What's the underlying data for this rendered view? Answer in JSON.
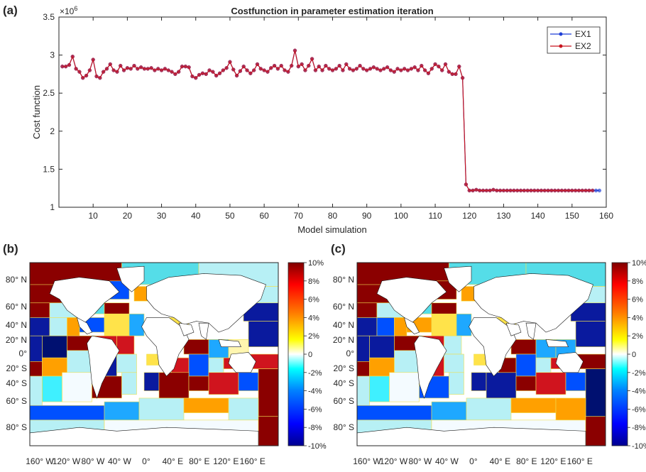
{
  "colors": {
    "ex1": "#1f3fd6",
    "ex2": "#c8141e",
    "axis": "#262626",
    "land": "#ffffff",
    "region_border": "#f0e050"
  },
  "panel_a": {
    "label": "(a)",
    "chart_data": {
      "type": "line",
      "title": "Costfunction in parameter estimation iteration",
      "xlabel": "Model simulation",
      "ylabel": "Cost function",
      "exponent_label": "×10",
      "exponent_power": "6",
      "xlim": [
        0,
        160
      ],
      "ylim": [
        1,
        3.5
      ],
      "xticks": [
        10,
        20,
        30,
        40,
        50,
        60,
        70,
        80,
        90,
        100,
        110,
        120,
        130,
        140,
        150,
        160
      ],
      "yticks": [
        1,
        1.5,
        2,
        2.5,
        3,
        3.5
      ],
      "ytick_labels": [
        "1",
        "1.5",
        "2",
        "2.5",
        "3",
        "3.5"
      ],
      "legend_position": "top-right",
      "series": [
        {
          "name": "EX1",
          "color": "#1f3fd6",
          "values": [
            2.85,
            2.85,
            2.87,
            2.98,
            2.82,
            2.78,
            2.7,
            2.73,
            2.8,
            2.94,
            2.72,
            2.7,
            2.78,
            2.82,
            2.88,
            2.8,
            2.78,
            2.86,
            2.8,
            2.83,
            2.82,
            2.86,
            2.82,
            2.84,
            2.82,
            2.82,
            2.83,
            2.8,
            2.82,
            2.8,
            2.82,
            2.8,
            2.78,
            2.75,
            2.78,
            2.85,
            2.85,
            2.84,
            2.72,
            2.7,
            2.74,
            2.76,
            2.75,
            2.8,
            2.78,
            2.73,
            2.76,
            2.8,
            2.83,
            2.91,
            2.81,
            2.73,
            2.79,
            2.85,
            2.8,
            2.76,
            2.8,
            2.88,
            2.82,
            2.8,
            2.78,
            2.83,
            2.86,
            2.82,
            2.86,
            2.8,
            2.78,
            2.86,
            3.06,
            2.85,
            2.88,
            2.8,
            2.86,
            2.95,
            2.8,
            2.85,
            2.8,
            2.86,
            2.82,
            2.8,
            2.82,
            2.86,
            2.8,
            2.88,
            2.82,
            2.8,
            2.82,
            2.86,
            2.82,
            2.8,
            2.82,
            2.84,
            2.82,
            2.8,
            2.82,
            2.84,
            2.8,
            2.78,
            2.82,
            2.8,
            2.82,
            2.8,
            2.82,
            2.84,
            2.8,
            2.86,
            2.8,
            2.76,
            2.82,
            2.88,
            2.85,
            2.8,
            2.88,
            2.78,
            2.75,
            2.75,
            2.85,
            2.7,
            1.3,
            1.22,
            1.22,
            1.23,
            1.22,
            1.22,
            1.22,
            1.22,
            1.23,
            1.22,
            1.22,
            1.22,
            1.22,
            1.22,
            1.22,
            1.22,
            1.22,
            1.22,
            1.22,
            1.22,
            1.22,
            1.22,
            1.22,
            1.22,
            1.22,
            1.22,
            1.22,
            1.22,
            1.22,
            1.22,
            1.22,
            1.22,
            1.22,
            1.22,
            1.22,
            1.22,
            1.22,
            1.22,
            1.22,
            1.22
          ]
        },
        {
          "name": "EX2",
          "color": "#c8141e",
          "values": [
            2.85,
            2.85,
            2.87,
            2.98,
            2.82,
            2.78,
            2.7,
            2.73,
            2.8,
            2.94,
            2.72,
            2.7,
            2.78,
            2.82,
            2.88,
            2.8,
            2.78,
            2.86,
            2.8,
            2.83,
            2.82,
            2.86,
            2.82,
            2.84,
            2.82,
            2.82,
            2.83,
            2.8,
            2.82,
            2.8,
            2.82,
            2.8,
            2.78,
            2.75,
            2.78,
            2.85,
            2.85,
            2.84,
            2.72,
            2.7,
            2.74,
            2.76,
            2.75,
            2.8,
            2.78,
            2.73,
            2.76,
            2.8,
            2.83,
            2.91,
            2.81,
            2.73,
            2.79,
            2.85,
            2.8,
            2.76,
            2.8,
            2.88,
            2.82,
            2.8,
            2.78,
            2.83,
            2.86,
            2.82,
            2.86,
            2.8,
            2.78,
            2.86,
            3.06,
            2.85,
            2.88,
            2.8,
            2.86,
            2.95,
            2.8,
            2.85,
            2.8,
            2.86,
            2.82,
            2.8,
            2.82,
            2.86,
            2.8,
            2.88,
            2.82,
            2.8,
            2.82,
            2.86,
            2.82,
            2.8,
            2.82,
            2.84,
            2.82,
            2.8,
            2.82,
            2.84,
            2.8,
            2.78,
            2.82,
            2.8,
            2.82,
            2.8,
            2.82,
            2.84,
            2.8,
            2.86,
            2.8,
            2.76,
            2.82,
            2.88,
            2.85,
            2.8,
            2.88,
            2.78,
            2.75,
            2.75,
            2.85,
            2.7,
            1.3,
            1.22,
            1.22,
            1.23,
            1.22,
            1.22,
            1.22,
            1.22,
            1.23,
            1.22,
            1.22,
            1.22,
            1.22,
            1.22,
            1.22,
            1.22,
            1.22,
            1.22,
            1.22,
            1.22,
            1.22,
            1.22,
            1.22,
            1.22,
            1.22,
            1.22,
            1.22,
            1.22,
            1.22,
            1.22,
            1.22,
            1.22,
            1.22,
            1.22,
            1.22,
            1.22,
            1.22,
            1.22
          ]
        }
      ]
    }
  },
  "panel_b": {
    "label": "(b)"
  },
  "panel_c": {
    "label": "(c)"
  },
  "maps": {
    "lat_labels": [
      "80° N",
      "60° N",
      "40° N",
      "20° N",
      "0°",
      "20° S",
      "40° S",
      "60° S",
      "80° S"
    ],
    "lon_labels": [
      "160° W",
      "120° W",
      "80° W",
      "40° W",
      "0°",
      "40° E",
      "80° E",
      "120° E",
      "160° E"
    ],
    "colorbar": {
      "ticks": [
        "10%",
        "8%",
        "6%",
        "4%",
        "2%",
        "0",
        "-2%",
        "-4%",
        "-6%",
        "-8%",
        "-10%"
      ],
      "min": -10,
      "max": 10,
      "colors": [
        "#00008f",
        "#0000ff",
        "#0080ff",
        "#00ffff",
        "#80ffff",
        "#ffffff",
        "#ffff80",
        "#ffff00",
        "#ff8000",
        "#ff0000",
        "#800000"
      ]
    }
  }
}
